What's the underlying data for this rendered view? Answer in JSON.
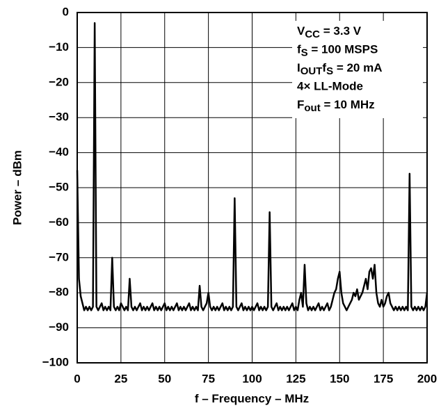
{
  "chart_data": {
    "type": "line",
    "xlabel": "f – Frequency – MHz",
    "ylabel": "Power – dBm",
    "annotations": [
      [
        {
          "text": "V"
        },
        {
          "text": "CC",
          "sub": true
        },
        {
          "text": " = 3.3 V"
        }
      ],
      [
        {
          "text": "f"
        },
        {
          "text": "S",
          "sub": true
        },
        {
          "text": " = 100 MSPS"
        }
      ],
      [
        {
          "text": "I"
        },
        {
          "text": "OUT",
          "sub": true
        },
        {
          "text": "f"
        },
        {
          "text": "S",
          "sub": true
        },
        {
          "text": " = 20 mA"
        }
      ],
      [
        {
          "text": "4× LL-Mode"
        }
      ],
      [
        {
          "text": "F"
        },
        {
          "text": "out",
          "sub": true
        },
        {
          "text": " = 10 MHz"
        }
      ]
    ],
    "xlim": [
      0,
      200
    ],
    "xticks": [
      0,
      25,
      50,
      75,
      100,
      125,
      150,
      175,
      200
    ],
    "ylim": [
      -100,
      0
    ],
    "yticks": [
      {
        "value": -100,
        "label": "−100"
      },
      {
        "value": -90,
        "label": "−90"
      },
      {
        "value": -80,
        "label": "−80"
      },
      {
        "value": -70,
        "label": "−70"
      },
      {
        "value": -60,
        "label": "−60"
      },
      {
        "value": -50,
        "label": "−50"
      },
      {
        "value": -40,
        "label": "−40"
      },
      {
        "value": -30,
        "label": "−30"
      },
      {
        "value": -20,
        "label": "−20"
      },
      {
        "value": -10,
        "label": "−10"
      },
      0
    ],
    "grid": true,
    "color": "#000000",
    "x": [
      0,
      1,
      2,
      3,
      4,
      5,
      6,
      7,
      8,
      9,
      10,
      11,
      12,
      13,
      14,
      15,
      16,
      17,
      18,
      19,
      20,
      21,
      22,
      23,
      24,
      25,
      26,
      27,
      28,
      29,
      30,
      31,
      32,
      33,
      34,
      35,
      36,
      37,
      38,
      39,
      40,
      41,
      42,
      43,
      44,
      45,
      46,
      47,
      48,
      49,
      50,
      51,
      52,
      53,
      54,
      55,
      56,
      57,
      58,
      59,
      60,
      61,
      62,
      63,
      64,
      65,
      66,
      67,
      68,
      69,
      70,
      71,
      72,
      73,
      74,
      75,
      76,
      77,
      78,
      79,
      80,
      81,
      82,
      83,
      84,
      85,
      86,
      87,
      88,
      89,
      90,
      91,
      92,
      93,
      94,
      95,
      96,
      97,
      98,
      99,
      100,
      101,
      102,
      103,
      104,
      105,
      106,
      107,
      108,
      109,
      110,
      111,
      112,
      113,
      114,
      115,
      116,
      117,
      118,
      119,
      120,
      121,
      122,
      123,
      124,
      125,
      126,
      127,
      128,
      129,
      130,
      131,
      132,
      133,
      134,
      135,
      136,
      137,
      138,
      139,
      140,
      141,
      142,
      143,
      144,
      145,
      146,
      147,
      148,
      149,
      150,
      151,
      152,
      153,
      154,
      155,
      156,
      157,
      158,
      159,
      160,
      161,
      162,
      163,
      164,
      165,
      166,
      167,
      168,
      169,
      170,
      171,
      172,
      173,
      174,
      175,
      176,
      177,
      178,
      179,
      180,
      181,
      182,
      183,
      184,
      185,
      186,
      187,
      188,
      189,
      190,
      191,
      192,
      193,
      194,
      195,
      196,
      197,
      198,
      199,
      200
    ],
    "values": [
      -45,
      -76,
      -81,
      -83,
      -85,
      -84,
      -85,
      -84,
      -85,
      -84,
      -3,
      -84,
      -85,
      -84,
      -83,
      -85,
      -84,
      -85,
      -84,
      -85,
      -70,
      -84,
      -85,
      -84,
      -85,
      -83,
      -84,
      -85,
      -84,
      -85,
      -76,
      -84,
      -85,
      -84,
      -85,
      -84,
      -83,
      -85,
      -84,
      -85,
      -84,
      -85,
      -84,
      -83,
      -85,
      -84,
      -85,
      -84,
      -85,
      -84,
      -83,
      -85,
      -84,
      -85,
      -84,
      -85,
      -84,
      -83,
      -85,
      -84,
      -85,
      -84,
      -85,
      -84,
      -83,
      -85,
      -84,
      -85,
      -84,
      -85,
      -78,
      -84,
      -85,
      -84,
      -83,
      -80,
      -84,
      -85,
      -84,
      -85,
      -84,
      -85,
      -84,
      -83,
      -85,
      -84,
      -85,
      -84,
      -85,
      -84,
      -53,
      -84,
      -85,
      -84,
      -83,
      -85,
      -84,
      -85,
      -84,
      -85,
      -84,
      -85,
      -84,
      -83,
      -85,
      -84,
      -85,
      -84,
      -85,
      -84,
      -57,
      -84,
      -85,
      -84,
      -83,
      -85,
      -84,
      -85,
      -84,
      -85,
      -84,
      -85,
      -84,
      -83,
      -85,
      -84,
      -85,
      -82,
      -80,
      -84,
      -72,
      -83,
      -85,
      -84,
      -85,
      -84,
      -85,
      -84,
      -83,
      -85,
      -84,
      -85,
      -84,
      -83,
      -85,
      -84,
      -82,
      -80,
      -79,
      -76,
      -74,
      -80,
      -83,
      -84,
      -85,
      -84,
      -83,
      -82,
      -80,
      -81,
      -79,
      -82,
      -81,
      -80,
      -78,
      -76,
      -79,
      -74,
      -73,
      -76,
      -72,
      -80,
      -83,
      -84,
      -82,
      -84,
      -83,
      -81,
      -80,
      -83,
      -84,
      -85,
      -84,
      -85,
      -84,
      -85,
      -84,
      -85,
      -84,
      -85,
      -46,
      -84,
      -85,
      -84,
      -85,
      -84,
      -85,
      -84,
      -85,
      -84,
      -80
    ]
  }
}
